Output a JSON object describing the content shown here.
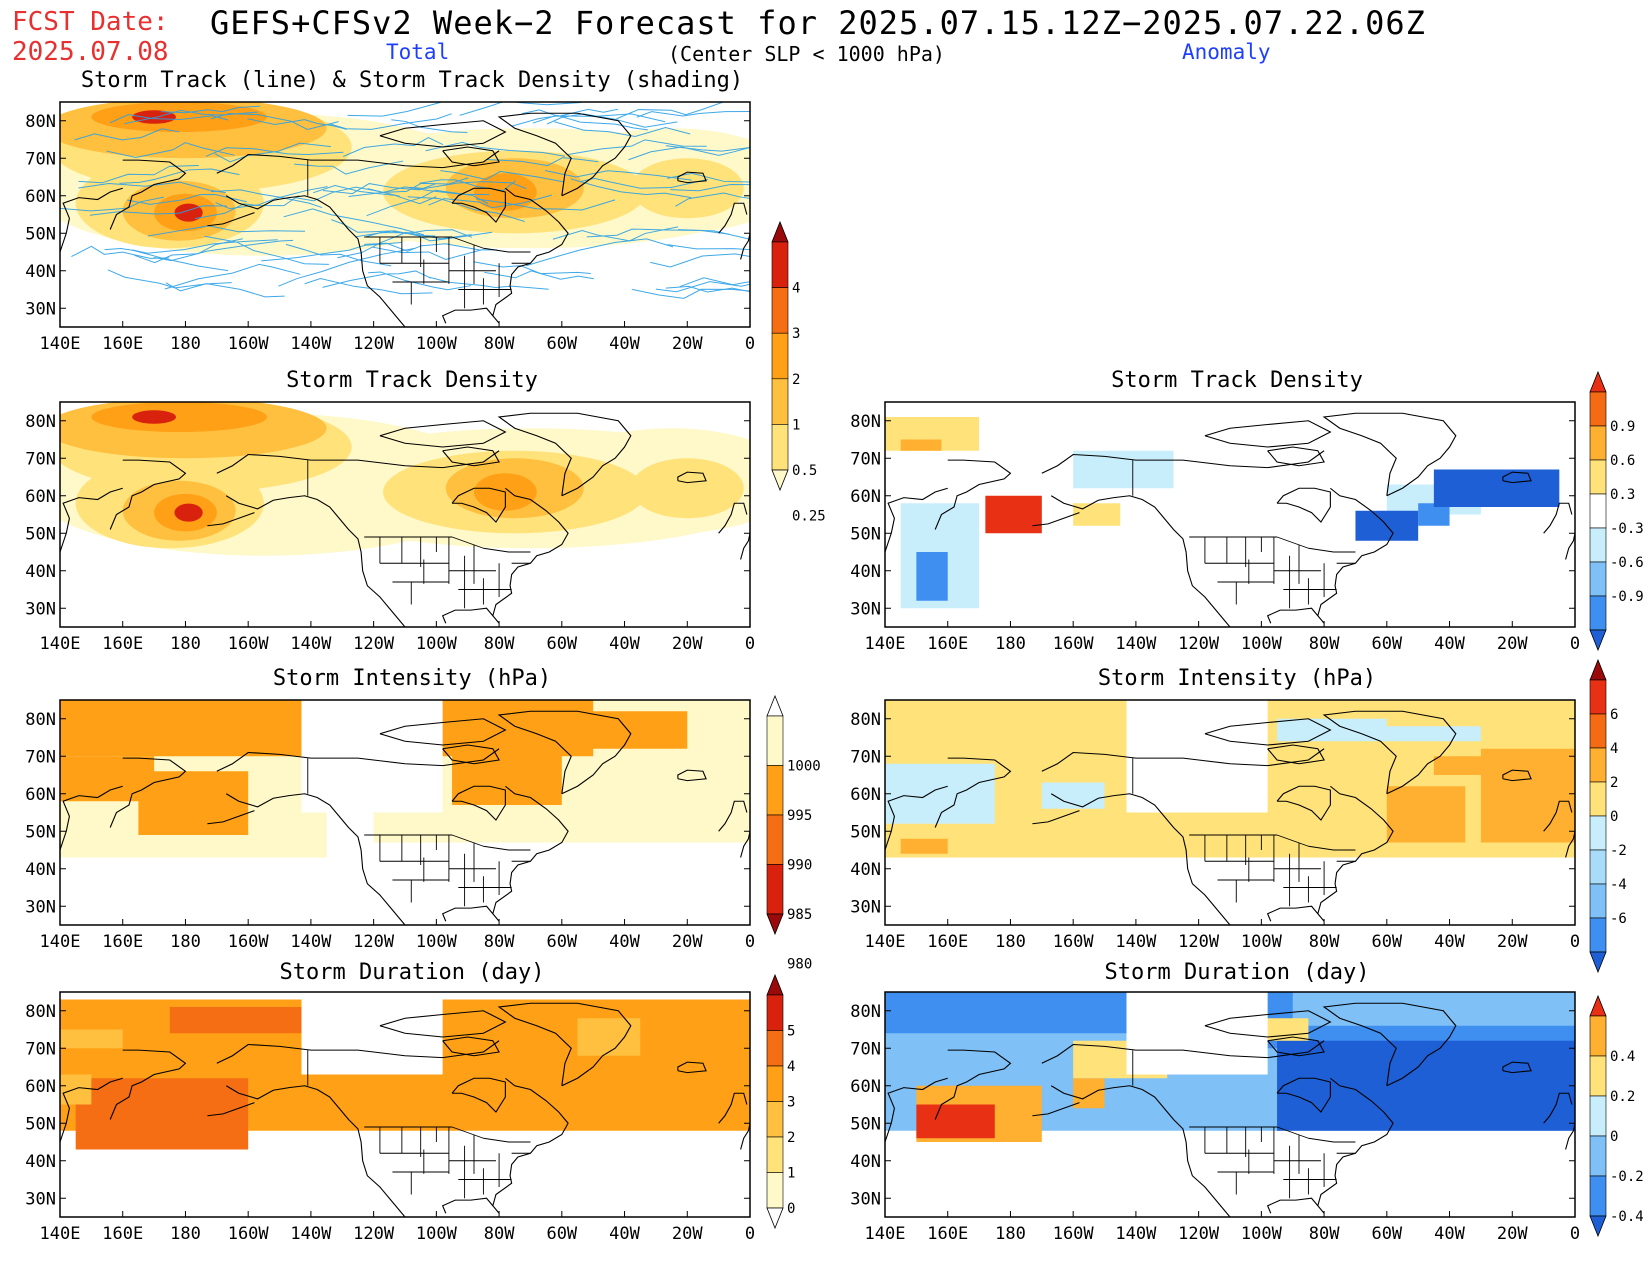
{
  "header": {
    "fcst_label": "FCST Date:",
    "fcst_date": "2025.07.08",
    "title": "GEFS+CFSv2 Week−2 Forecast for 2025.07.15.12Z−2025.07.22.06Z",
    "left_subtitle": "Total",
    "center_subtitle": "(Center SLP < 1000 hPa)",
    "right_subtitle": "Anomaly"
  },
  "panels": {
    "track_title": "Storm Track (line) & Storm Track Density (shading)",
    "density_total_title": "Storm Track Density",
    "density_anom_title": "Storm Track Density",
    "intensity_total_title": "Storm Intensity (hPa)",
    "intensity_anom_title": "Storm Intensity (hPa)",
    "duration_total_title": "Storm Duration (day)",
    "duration_anom_title": "Storm Duration (day)"
  },
  "axes": {
    "lat_labels": [
      "80N",
      "70N",
      "60N",
      "50N",
      "40N",
      "30N"
    ],
    "lon_labels": [
      "140E",
      "160E",
      "180",
      "160W",
      "140W",
      "120W",
      "100W",
      "80W",
      "60W",
      "40W",
      "20W",
      "0"
    ]
  },
  "colorbars": {
    "density_total": {
      "labels": [
        "0.25",
        "0.5",
        "1",
        "2",
        "3",
        "4"
      ],
      "colors": [
        "#fff8c8",
        "#ffe27a",
        "#ffbf3f",
        "#ffa016",
        "#f56e14",
        "#d9220e",
        "#9b0a0a"
      ]
    },
    "density_anom": {
      "labels": [
        "-0.9",
        "-0.6",
        "-0.3",
        "0.3",
        "0.6",
        "0.9"
      ],
      "colors": [
        "#1e5fd6",
        "#3f8ff0",
        "#7fc0f7",
        "#c8eefc",
        "#ffffff",
        "#ffe27a",
        "#ffb030",
        "#f56a14",
        "#e83014"
      ]
    },
    "intensity_total": {
      "labels": [
        "980",
        "985",
        "990",
        "995",
        "1000"
      ],
      "colors": [
        "#9b0a0a",
        "#d9220e",
        "#f56e14",
        "#ffa016",
        "#fff8c8",
        "#ffffff"
      ]
    },
    "intensity_anom": {
      "labels": [
        "-6",
        "-4",
        "-2",
        "0",
        "2",
        "4",
        "6"
      ],
      "colors": [
        "#1e5fd6",
        "#3f8ff0",
        "#7fc0f7",
        "#a9dcf9",
        "#c8eefc",
        "#ffe27a",
        "#ffb030",
        "#f56a14",
        "#e83014",
        "#9b0a0a"
      ]
    },
    "duration_total": {
      "labels": [
        "0",
        "1",
        "2",
        "3",
        "4",
        "5"
      ],
      "colors": [
        "#ffffff",
        "#fff8c8",
        "#ffe27a",
        "#ffbf3f",
        "#ffa016",
        "#f56e14",
        "#d9220e",
        "#9b0a0a"
      ]
    },
    "duration_anom": {
      "labels": [
        "-0.4",
        "-0.2",
        "0",
        "0.2",
        "0.4"
      ],
      "colors": [
        "#1e5fd6",
        "#3f8ff0",
        "#7fc0f7",
        "#c8eefc",
        "#ffe27a",
        "#ffb030",
        "#e83014"
      ]
    }
  },
  "colors": {
    "track_line": "#2aa0e6",
    "land_outline": "#000000"
  }
}
